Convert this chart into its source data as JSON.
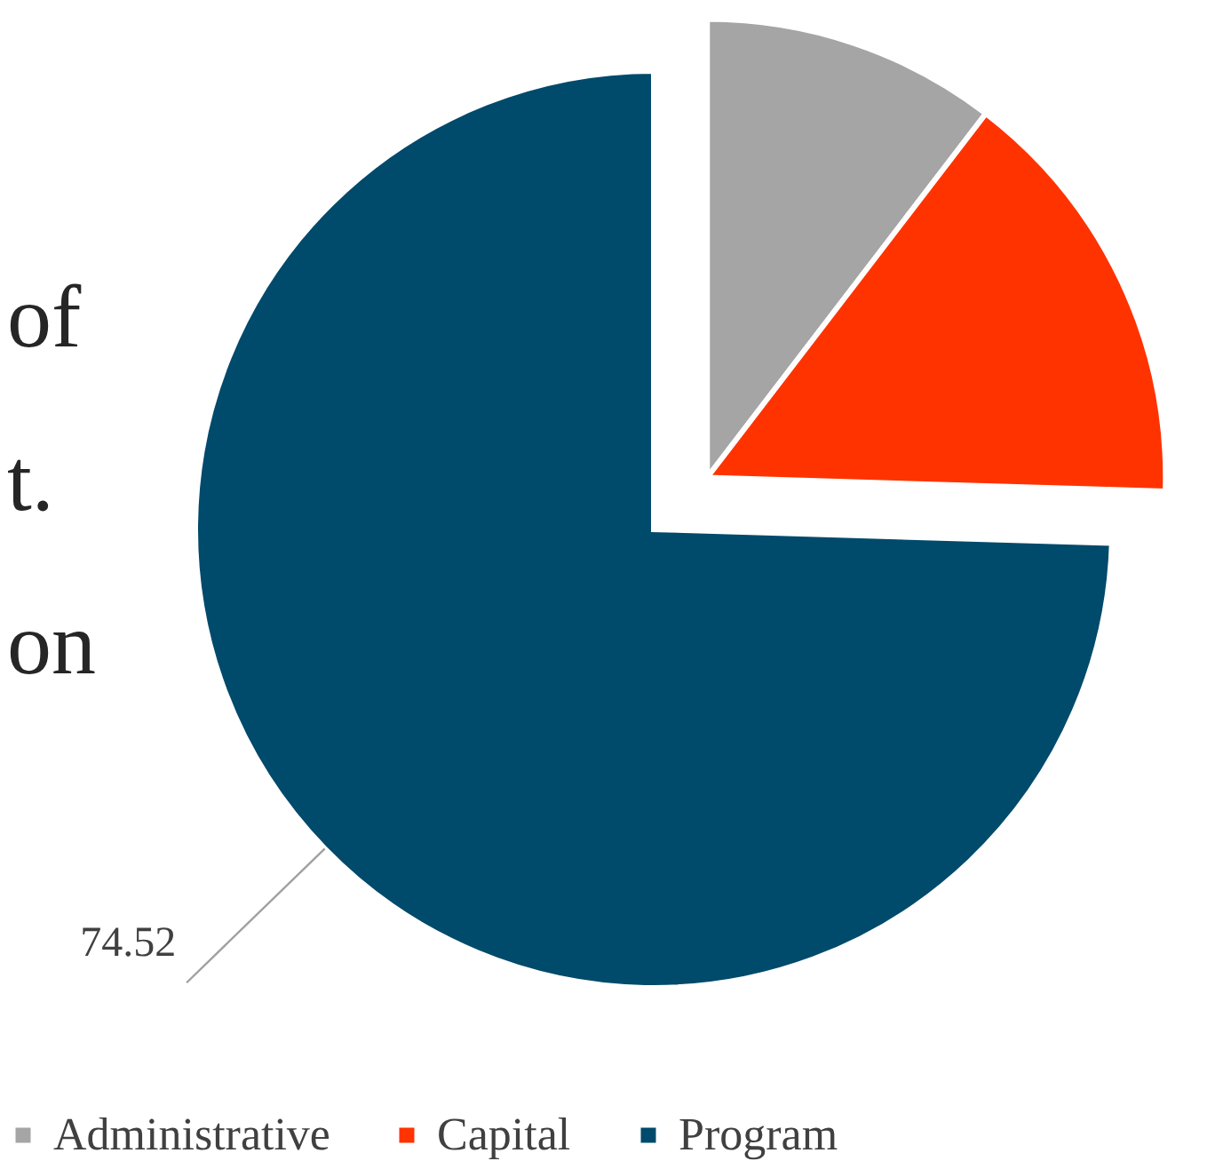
{
  "chart_data": {
    "type": "pie",
    "categories": [
      "Administrative",
      "Capital",
      "Program"
    ],
    "values": [
      10.4,
      15.08,
      74.52
    ],
    "colors": [
      "#a5a5a5",
      "#ff3300",
      "#004a6b"
    ],
    "value_labels": [
      null,
      null,
      "74.52"
    ],
    "annotations": [
      "of",
      "t.",
      "on"
    ],
    "legend": "bottom"
  }
}
